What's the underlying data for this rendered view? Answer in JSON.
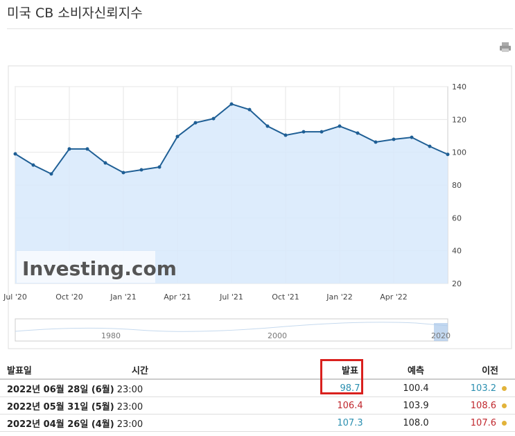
{
  "header": {
    "title": "미국 CB 소비자신뢰지수"
  },
  "chart_data": {
    "type": "line",
    "color": "#1f5f95",
    "fill": "#d7e9fb",
    "grid": true,
    "watermark": "Investing.com",
    "categories": [
      "Jul '20",
      null,
      null,
      "Oct '20",
      null,
      null,
      "Jan '21",
      null,
      null,
      "Apr '21",
      null,
      null,
      "Jul '21",
      null,
      null,
      "Oct '21",
      null,
      null,
      "Jan '22",
      null,
      null,
      "Apr '22",
      null,
      null,
      null
    ],
    "values": [
      99.0,
      92.2,
      86.8,
      102.0,
      102.0,
      93.5,
      87.6,
      89.3,
      91.0,
      109.6,
      118.0,
      120.5,
      129.4,
      126.0,
      115.9,
      110.4,
      112.5,
      112.5,
      115.9,
      111.7,
      106.2,
      107.9,
      109.1,
      103.6,
      98.7
    ],
    "ylim": [
      20,
      140
    ],
    "yticks": [
      20,
      40,
      60,
      80,
      100,
      120,
      140
    ],
    "navigator_labels": [
      "1980",
      "2000",
      "2020"
    ]
  },
  "table": {
    "columns": [
      "발표일",
      "시간",
      "발표",
      "예측",
      "이전"
    ],
    "rows": [
      {
        "date": "2022년 06월 28일 (6월)",
        "time": "23:00",
        "actual": "98.7",
        "actual_color": "#2a8fb0",
        "forecast": "100.4",
        "previous": "103.2",
        "previous_color": "#2a8fb0"
      },
      {
        "date": "2022년 05월 31일 (5월)",
        "time": "23:00",
        "actual": "106.4",
        "actual_color": "#c0272d",
        "forecast": "103.9",
        "previous": "108.6",
        "previous_color": "#c0272d"
      },
      {
        "date": "2022년 04월 26일 (4월)",
        "time": "23:00",
        "actual": "107.3",
        "actual_color": "#2a8fb0",
        "forecast": "108.0",
        "previous": "107.6",
        "previous_color": "#c0272d"
      }
    ]
  }
}
